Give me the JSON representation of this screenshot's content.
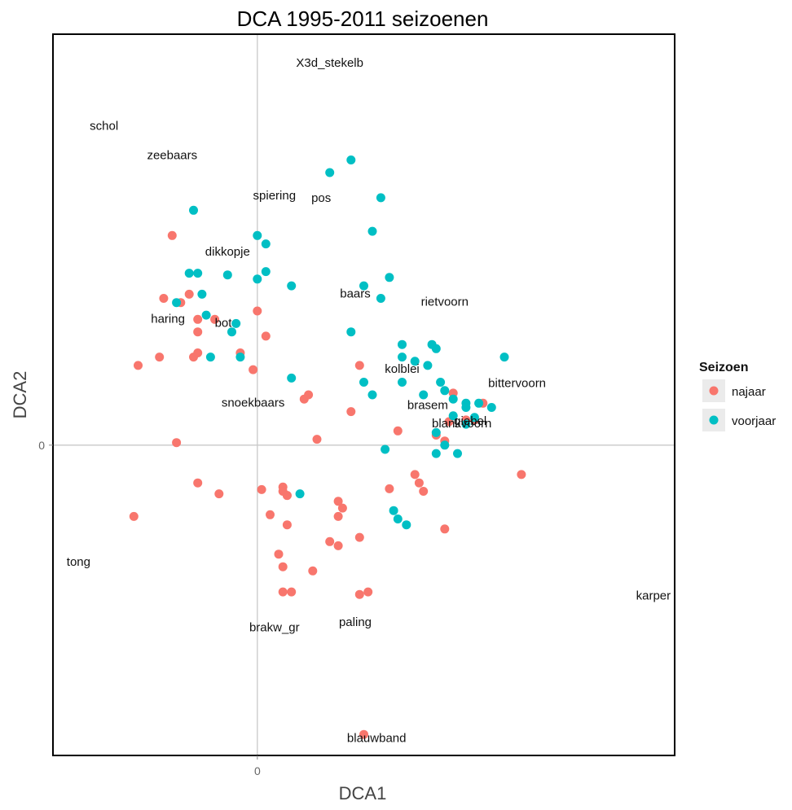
{
  "chart_data": {
    "type": "scatter",
    "title": "DCA 1995-2011 seizoenen",
    "xlabel": "DCA1",
    "ylabel": "DCA2",
    "xlim": [
      -2.4,
      4.9
    ],
    "ylim": [
      -3.7,
      4.9
    ],
    "x_ticks": [
      {
        "value": 0,
        "label": "0"
      }
    ],
    "y_ticks": [
      {
        "value": 0,
        "label": "0"
      }
    ],
    "grid": false,
    "reference_lines": {
      "x": 0,
      "y": 0
    },
    "legend": {
      "title": "Seizoen",
      "position": "right",
      "entries": [
        {
          "label": "najaar",
          "color": "#F8766D"
        },
        {
          "label": "voorjaar",
          "color": "#00BFC4"
        }
      ]
    },
    "series": [
      {
        "name": "najaar",
        "color": "#F8766D",
        "points": [
          [
            -1.0,
            2.5
          ],
          [
            -0.8,
            1.8
          ],
          [
            -0.9,
            1.7
          ],
          [
            -0.7,
            1.5
          ],
          [
            -0.7,
            1.35
          ],
          [
            -1.1,
            1.75
          ],
          [
            -0.5,
            1.5
          ],
          [
            0,
            1.6
          ],
          [
            0.1,
            1.3
          ],
          [
            -0.2,
            1.1
          ],
          [
            -0.7,
            1.1
          ],
          [
            -0.75,
            1.05
          ],
          [
            -1.15,
            1.05
          ],
          [
            -1.4,
            0.95
          ],
          [
            -0.05,
            0.9
          ],
          [
            0.55,
            0.55
          ],
          [
            0.6,
            0.6
          ],
          [
            0.7,
            0.07
          ],
          [
            -0.95,
            0.03
          ],
          [
            -1.45,
            -0.85
          ],
          [
            -0.7,
            -0.45
          ],
          [
            -0.45,
            -0.58
          ],
          [
            0.05,
            -0.53
          ],
          [
            0.3,
            -0.5
          ],
          [
            0.35,
            -0.6
          ],
          [
            0.3,
            -0.55
          ],
          [
            0.35,
            -0.6
          ],
          [
            0.15,
            -0.83
          ],
          [
            0.35,
            -0.95
          ],
          [
            0.95,
            -0.67
          ],
          [
            1.0,
            -0.75
          ],
          [
            0.95,
            -0.85
          ],
          [
            1.2,
            -1.1
          ],
          [
            0.85,
            -1.15
          ],
          [
            0.95,
            -1.2
          ],
          [
            0.25,
            -1.3
          ],
          [
            0.3,
            -1.45
          ],
          [
            0.65,
            -1.5
          ],
          [
            0.3,
            -1.75
          ],
          [
            0.4,
            -1.75
          ],
          [
            1.2,
            -1.78
          ],
          [
            1.3,
            -1.75
          ],
          [
            1.25,
            -3.45
          ],
          [
            1.2,
            0.95
          ],
          [
            1.1,
            0.4
          ],
          [
            1.65,
            0.17
          ],
          [
            1.55,
            -0.52
          ],
          [
            1.85,
            -0.35
          ],
          [
            1.9,
            -0.45
          ],
          [
            1.95,
            -0.55
          ],
          [
            2.2,
            0.05
          ],
          [
            2.1,
            0.12
          ],
          [
            2.25,
            0.28
          ],
          [
            2.3,
            0.62
          ],
          [
            2.45,
            0.3
          ],
          [
            2.55,
            0.3
          ],
          [
            2.65,
            0.5
          ],
          [
            3.1,
            -0.35
          ],
          [
            2.2,
            -1.0
          ]
        ]
      },
      {
        "name": "voorjaar",
        "color": "#00BFC4",
        "points": [
          [
            -0.75,
            2.8
          ],
          [
            -0.8,
            2.05
          ],
          [
            -0.7,
            2.05
          ],
          [
            -0.35,
            2.03
          ],
          [
            0.1,
            2.4
          ],
          [
            0.0,
            2.5
          ],
          [
            0.1,
            2.07
          ],
          [
            0.0,
            1.98
          ],
          [
            -0.65,
            1.8
          ],
          [
            -0.95,
            1.7
          ],
          [
            0.4,
            1.9
          ],
          [
            0.85,
            3.25
          ],
          [
            1.1,
            3.4
          ],
          [
            1.45,
            2.95
          ],
          [
            1.35,
            2.55
          ],
          [
            1.55,
            2.0
          ],
          [
            1.25,
            1.9
          ],
          [
            1.45,
            1.75
          ],
          [
            -0.6,
            1.55
          ],
          [
            -0.25,
            1.45
          ],
          [
            -0.3,
            1.35
          ],
          [
            -0.55,
            1.05
          ],
          [
            -0.2,
            1.05
          ],
          [
            1.1,
            1.35
          ],
          [
            1.25,
            0.75
          ],
          [
            1.35,
            0.6
          ],
          [
            0.4,
            0.8
          ],
          [
            1.7,
            1.2
          ],
          [
            1.7,
            1.05
          ],
          [
            1.85,
            1.0
          ],
          [
            1.7,
            0.75
          ],
          [
            2.0,
            0.95
          ],
          [
            2.05,
            1.2
          ],
          [
            2.1,
            1.15
          ],
          [
            2.15,
            0.75
          ],
          [
            2.2,
            0.65
          ],
          [
            2.3,
            0.55
          ],
          [
            2.45,
            0.5
          ],
          [
            2.6,
            0.5
          ],
          [
            2.1,
            0.15
          ],
          [
            2.2,
            0.0
          ],
          [
            2.3,
            0.35
          ],
          [
            2.45,
            0.25
          ],
          [
            2.55,
            0.33
          ],
          [
            2.75,
            0.45
          ],
          [
            2.9,
            1.05
          ],
          [
            2.35,
            -0.1
          ],
          [
            2.1,
            -0.1
          ],
          [
            1.5,
            -0.05
          ],
          [
            0.5,
            -0.58
          ],
          [
            1.6,
            -0.78
          ],
          [
            1.75,
            -0.95
          ],
          [
            1.65,
            -0.88
          ],
          [
            1.95,
            0.6
          ],
          [
            2.45,
            0.45
          ]
        ]
      }
    ],
    "annotations": [
      {
        "text": "X3d_stekelb",
        "x": 0.85,
        "y": 4.55
      },
      {
        "text": "schol",
        "x": -1.8,
        "y": 3.8
      },
      {
        "text": "zeebaars",
        "x": -1.0,
        "y": 3.45
      },
      {
        "text": "spiering",
        "x": 0.2,
        "y": 2.97
      },
      {
        "text": "pos",
        "x": 0.75,
        "y": 2.94
      },
      {
        "text": "dikkopje",
        "x": -0.35,
        "y": 2.3
      },
      {
        "text": "baars",
        "x": 1.15,
        "y": 1.8
      },
      {
        "text": "rietvoorn",
        "x": 2.2,
        "y": 1.7
      },
      {
        "text": "haring",
        "x": -1.05,
        "y": 1.5
      },
      {
        "text": "bot",
        "x": -0.4,
        "y": 1.45
      },
      {
        "text": "kolblei",
        "x": 1.7,
        "y": 0.9
      },
      {
        "text": "bittervoorn",
        "x": 3.05,
        "y": 0.73
      },
      {
        "text": "snoekbaars",
        "x": -0.05,
        "y": 0.5
      },
      {
        "text": "brasem",
        "x": 2.0,
        "y": 0.47
      },
      {
        "text": "blankvoorn",
        "x": 2.4,
        "y": 0.25
      },
      {
        "text": "giebel",
        "x": 2.5,
        "y": 0.28
      },
      {
        "text": "tong",
        "x": -2.1,
        "y": -1.4
      },
      {
        "text": "karper",
        "x": 4.65,
        "y": -1.8
      },
      {
        "text": "brakw_gr",
        "x": 0.2,
        "y": -2.18
      },
      {
        "text": "paling",
        "x": 1.15,
        "y": -2.12
      },
      {
        "text": "blauwband",
        "x": 1.4,
        "y": -3.5
      }
    ]
  }
}
